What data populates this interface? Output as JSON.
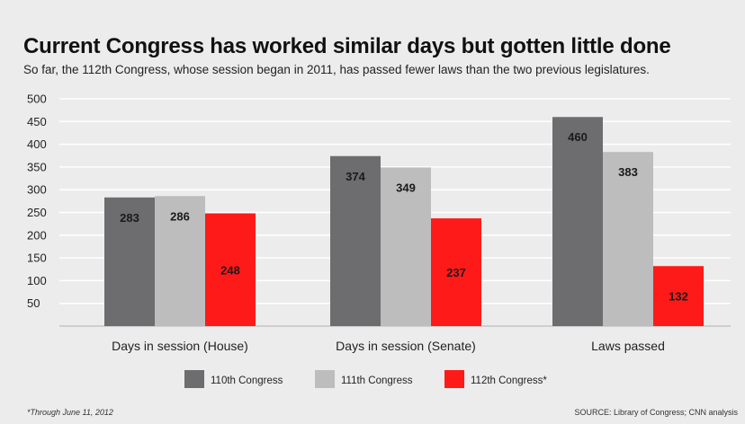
{
  "title": "Current Congress has worked similar days but gotten little done",
  "subtitle": "So far, the 112th Congress, whose session began in 2011, has passed fewer laws than the two previous legislatures.",
  "footnote": "*Through June 11, 2012",
  "source": "SOURCE: Library of Congress; CNN analysis",
  "colors": {
    "series_110": "#6d6d6f",
    "series_111": "#bdbdbd",
    "series_112": "#ff1a1a",
    "background": "#ececec",
    "gridline": "#ffffff"
  },
  "chart_data": {
    "type": "bar",
    "categories": [
      "Days in session (House)",
      "Days in session (Senate)",
      "Laws passed"
    ],
    "series": [
      {
        "name": "110th Congress",
        "values": [
          283,
          374,
          460
        ]
      },
      {
        "name": "111th Congress",
        "values": [
          286,
          349,
          383
        ]
      },
      {
        "name": "112th Congress*",
        "values": [
          248,
          237,
          132
        ]
      }
    ],
    "yticks": [
      50,
      100,
      150,
      200,
      250,
      300,
      350,
      400,
      450,
      500
    ],
    "ylim": [
      0,
      500
    ],
    "grid": true,
    "legend_placement": "bottom-center",
    "data_labels": true
  }
}
